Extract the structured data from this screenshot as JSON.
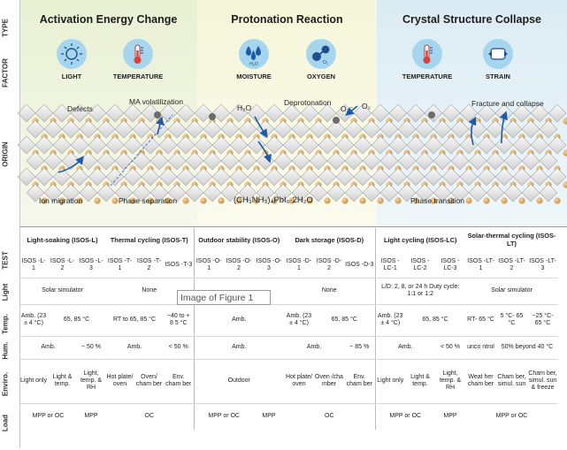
{
  "row_labels": {
    "type": "TYPE",
    "factor": "FACTOR",
    "origin": "ORIGIN",
    "test": "TEST",
    "light": "Light",
    "temp": "Temp.",
    "hum": "Hum.",
    "enviro": "Enviro.",
    "load": "Load"
  },
  "panels": [
    {
      "title": "Activation Energy Change",
      "factors": [
        {
          "label": "LIGHT",
          "icon": "sun-icon"
        },
        {
          "label": "TEMPERATURE",
          "icon": "thermometer-icon"
        }
      ]
    },
    {
      "title": "Protonation Reaction",
      "factors": [
        {
          "label": "MOISTURE",
          "icon": "water-drops-icon"
        },
        {
          "label": "OXYGEN",
          "icon": "oxygen-molecule-icon"
        }
      ]
    },
    {
      "title": "Crystal Structure Collapse",
      "factors": [
        {
          "label": "TEMPERATURE",
          "icon": "thermometer-icon"
        },
        {
          "label": "STRAIN",
          "icon": "strain-icon"
        }
      ]
    }
  ],
  "icon_text": {
    "h2o": "H₂O",
    "o2": "O₂"
  },
  "origin_labels": {
    "defects": "Defects",
    "ma_volatilization": "MA volatilization",
    "ion_migration": "Ion migration",
    "phase_separation": "Phase separation",
    "h2o": "H₂O",
    "deprotonation": "Deprotonation",
    "o2_minus": "O₂⁻",
    "o2": "O₂",
    "formula": "(CH₃NH₃)₄PbI₆·2H₂O",
    "fracture": "Fracture and collapse",
    "phase_transition": "Phase transition"
  },
  "groups": [
    "Light-soaking (ISOS-L)",
    "Thermal cycling (ISOS-T)",
    "Outdoor stability (ISOS-O)",
    "Dark storage (ISOS-D)",
    "Light cycling (ISOS-LC)",
    "Solar-thermal cycling (ISOS-LT)"
  ],
  "tests": [
    "ISOS -L-1",
    "ISOS -L-2",
    "ISOS -L-3",
    "ISOS -T-1",
    "ISOS -T-2",
    "ISOS -T-3",
    "ISOS -O-1",
    "ISOS -O-2",
    "ISOS -O-3",
    "ISOS -D-1",
    "ISOS -D-2",
    "ISOS -D-3",
    "ISOS -LC-1",
    "ISOS -LC-2",
    "ISOS -LC-3",
    "ISOS -LT-1",
    "ISOS -LT-2",
    "ISOS -LT-3"
  ],
  "light_row": {
    "l": "Solar simulator",
    "t": "None",
    "d": "None",
    "lc": "L/D: 2, 8, or 24 h Duty cycle: 1:1 or 1:2",
    "lt": "Solar simulator"
  },
  "temp_row": {
    "l1": "Amb. (23 ± 4 °C)",
    "l23": "65, 85 °C",
    "t12": "RT to 65, 85 °C",
    "t3": "−40 to + 8 5 °C",
    "o": "Amb.",
    "d1": "Amb. (23 ± 4 °C)",
    "d23": "65, 85 °C",
    "lc1": "Amb. (23 ± 4 °C)",
    "lc23": "65, 85 °C",
    "lt1": "RT- 65 °C",
    "lt2": "5 °C- 65 °C",
    "lt3": "−25 °C- 65 °C"
  },
  "hum_row": {
    "l12": "Amb.",
    "l3": "~ 50 %",
    "t12": "Amb.",
    "t3": "< 50 %",
    "o": "Amb.",
    "d12": "Amb.",
    "d3": "~ 85 %",
    "lc12": "Amb.",
    "lc3": "< 50 %",
    "lt1": "unco ntrol",
    "lt23": "50% beyond 40 °C"
  },
  "enviro_row": {
    "l1": "Light only",
    "l2": "Light & temp.",
    "l3": "Light, temp. & RH",
    "t1": "Hot plate/ oven",
    "t2": "Oven/ cham ber",
    "t3": "Env. cham ber",
    "o": "Outdoor",
    "d1": "Hot plate/ oven",
    "d2": "Oven /cha mber",
    "d3": "Env. cham ber",
    "lc1": "Light only",
    "lc2": "Light & temp.",
    "lc3": "Light, temp. & RH",
    "lt1": "Weat her cham ber",
    "lt2": "Cham ber, simul. sun",
    "lt3": "Cham ber, simul. sun & freeze"
  },
  "load_row": {
    "l12": "MPP or OC",
    "l3": "MPP",
    "t": "OC",
    "o12": "MPP or OC",
    "o3": "MPP",
    "d": "OC",
    "lc12": "MPP or OC",
    "lc3": "MPP",
    "lt": "MPP or OC"
  },
  "overlay_text": "Image of Figure 1",
  "colors": {
    "panel1": "#eaf1d6",
    "panel2": "#f8f8df",
    "panel3": "#e2eff5",
    "icon": "#9fd3ec",
    "accent": "#1f5aa8"
  }
}
